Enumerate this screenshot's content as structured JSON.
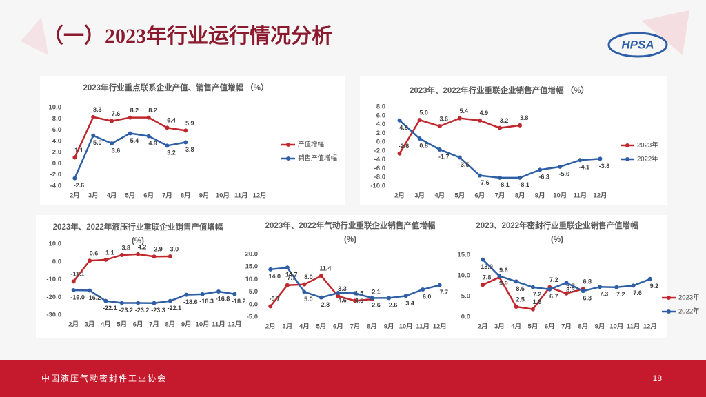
{
  "header": {
    "title": "（一）2023年行业运行情况分析",
    "logo": "HPSA"
  },
  "footer": {
    "organization": "中国液压气动密封件工业协会",
    "page_number": "18"
  },
  "chart_data": [
    {
      "type": "line",
      "title": "2023年行业重点联系企业产值、销售产值增幅 （%）",
      "categories": [
        "2月",
        "3月",
        "4月",
        "5月",
        "6月",
        "7月",
        "8月",
        "9月",
        "10月",
        "11月",
        "12月"
      ],
      "series": [
        {
          "name": "产值增幅",
          "color": "#c0282d",
          "values": [
            1.1,
            8.3,
            7.6,
            8.2,
            8.2,
            6.4,
            5.9,
            null,
            null,
            null,
            null
          ],
          "value_labels": [
            "1.1",
            "8.3",
            "7.6",
            "8.2",
            "8.2",
            "6.4",
            "5.9",
            null,
            null,
            null,
            null
          ]
        },
        {
          "name": "销售产值增幅",
          "color": "#2e5fa6",
          "values": [
            -2.6,
            5.0,
            3.6,
            5.4,
            4.9,
            3.2,
            3.8,
            null,
            null,
            null,
            null
          ],
          "value_labels": [
            "-2.6",
            "5.0",
            "3.6",
            "5.4",
            "4.9",
            "3.2",
            "3.8",
            null,
            null,
            null,
            null
          ]
        }
      ],
      "ylim": [
        -4,
        10
      ],
      "yticks": [
        {
          "value": -4,
          "label": "-4.0"
        },
        {
          "value": -2,
          "label": "-2.0"
        },
        {
          "value": 0,
          "label": "0.0"
        },
        {
          "value": 2,
          "label": "2.0"
        },
        {
          "value": 4,
          "label": "4.0"
        },
        {
          "value": 6,
          "label": "6.0"
        },
        {
          "value": 8,
          "label": "8.0"
        },
        {
          "value": 10,
          "label": "10.0"
        }
      ],
      "legend": "right"
    },
    {
      "type": "line",
      "title": "2023年、2022年行业重联企业销售产值增幅 （%）",
      "categories": [
        "2月",
        "3月",
        "4月",
        "5月",
        "6月",
        "7月",
        "8月",
        "9月",
        "10月",
        "11月",
        "12月"
      ],
      "series": [
        {
          "name": "2023年",
          "color": "#c0282d",
          "values": [
            -2.6,
            5.0,
            3.6,
            5.4,
            4.9,
            3.2,
            3.8,
            null,
            null,
            null,
            null
          ],
          "value_labels": [
            "-2.6",
            "5.0",
            "3.6",
            "5.4",
            "4.9",
            "3.2",
            "3.8",
            null,
            null,
            null,
            null
          ]
        },
        {
          "name": "2022年",
          "color": "#2e5fa6",
          "values": [
            4.9,
            0.8,
            -1.7,
            -3.5,
            -7.6,
            -8.1,
            -8.1,
            -6.3,
            -5.6,
            -4.1,
            -3.8
          ],
          "value_labels": [
            "4.9",
            "0.8",
            "-1.7",
            "-3.5",
            "-7.6",
            "-8.1",
            "-8.1",
            "-6.3",
            "-5.6",
            "-4.1",
            "-3.8"
          ]
        }
      ],
      "ylim": [
        -10,
        8
      ],
      "yticks": [
        {
          "value": -10,
          "label": "-10.0"
        },
        {
          "value": -8,
          "label": "-8.0"
        },
        {
          "value": -6,
          "label": "-6.0"
        },
        {
          "value": -4,
          "label": "-4.0"
        },
        {
          "value": -2,
          "label": "-2.0"
        },
        {
          "value": 0,
          "label": "0.0"
        },
        {
          "value": 2,
          "label": "2.0"
        },
        {
          "value": 4,
          "label": "4.0"
        },
        {
          "value": 6,
          "label": "6.0"
        },
        {
          "value": 8,
          "label": "8.0"
        }
      ],
      "legend": "right"
    },
    {
      "type": "line",
      "title": "2023年、2022年液压行业重联企业销售产值增幅",
      "subtitle": "(%)",
      "categories": [
        "2月",
        "3月",
        "4月",
        "5月",
        "6月",
        "7月",
        "8月",
        "9月",
        "10月",
        "11月",
        "12月"
      ],
      "series": [
        {
          "name": "2023年",
          "color": "#c0282d",
          "values": [
            -11.1,
            0.6,
            1.1,
            3.8,
            4.2,
            2.9,
            3.0,
            null,
            null,
            null,
            null
          ],
          "value_labels": [
            "-11.1",
            "0.6",
            "1.1",
            "3.8",
            "4.2",
            "2.9",
            "3.0",
            null,
            null,
            null,
            null
          ]
        },
        {
          "name": "2022年",
          "color": "#2e5fa6",
          "values": [
            -16.0,
            -16.2,
            -22.1,
            -23.2,
            -23.2,
            -23.3,
            -22.1,
            -18.6,
            -18.3,
            -16.8,
            -18.2
          ],
          "value_labels": [
            "-16.0",
            "-16.2",
            "-22.1",
            "-23.2",
            "-23.2",
            "-23.3",
            "-22.1",
            "-18.6",
            "-18.3",
            "-16.8",
            "-18.2"
          ]
        }
      ],
      "ylim": [
        -30,
        10
      ],
      "yticks": [
        {
          "value": -30,
          "label": "-30.0"
        },
        {
          "value": -20,
          "label": "-20.0"
        },
        {
          "value": -10,
          "label": "-10.0"
        },
        {
          "value": 0,
          "label": "0.0"
        },
        {
          "value": 10,
          "label": "10.0"
        }
      ]
    },
    {
      "type": "line",
      "title": "2023年、2022年气动行业重联企业销售产值增幅",
      "subtitle": "(%)",
      "categories": [
        "2月",
        "3月",
        "4月",
        "5月",
        "6月",
        "7月",
        "8月",
        "9月",
        "10月",
        "11月",
        "12月"
      ],
      "series": [
        {
          "name": "2023年",
          "color": "#c0282d",
          "values": [
            -0.7,
            7.7,
            8.0,
            11.4,
            3.3,
            1.5,
            2.1,
            null,
            null,
            null,
            null
          ],
          "value_labels": [
            "-0.7",
            "7.7",
            "8.0",
            "11.4",
            "3.3",
            "1.5",
            "2.1",
            null,
            null,
            null,
            null
          ]
        },
        {
          "name": "2022年",
          "color": "#2e5fa6",
          "values": [
            14.0,
            14.7,
            5.0,
            2.8,
            4.6,
            4.5,
            2.6,
            2.6,
            3.4,
            6.0,
            7.7
          ],
          "value_labels": [
            "14.0",
            "14.7",
            "5.0",
            "2.8",
            "4.6",
            "4.5",
            "2.6",
            "2.6",
            "3.4",
            "6.0",
            "7.7"
          ]
        }
      ],
      "ylim": [
        -5,
        20
      ],
      "yticks": [
        {
          "value": -5,
          "label": "-5.0"
        },
        {
          "value": 0,
          "label": "0.0"
        },
        {
          "value": 5,
          "label": "5.0"
        },
        {
          "value": 10,
          "label": "10.0"
        },
        {
          "value": 15,
          "label": "15.0"
        },
        {
          "value": 20,
          "label": "20.0"
        }
      ]
    },
    {
      "type": "line",
      "title": "2023、2022年密封行业重联企业销售产值增幅",
      "subtitle": "(%)",
      "categories": [
        "2月",
        "3月",
        "4月",
        "5月",
        "6月",
        "7月",
        "8月",
        "9月",
        "10月",
        "11月",
        "12月"
      ],
      "series": [
        {
          "name": "2023年",
          "color": "#c0282d",
          "values": [
            7.8,
            9.6,
            2.5,
            1.9,
            7.2,
            5.7,
            6.8,
            null,
            null,
            null,
            null
          ],
          "value_labels": [
            "7.8",
            "9.6",
            "2.5",
            "1.9",
            "7.2",
            "5.7",
            "6.8",
            null,
            null,
            null,
            null
          ]
        },
        {
          "name": "2022年",
          "color": "#2e5fa6",
          "values": [
            13.9,
            9.9,
            8.6,
            7.2,
            6.7,
            8.3,
            6.3,
            7.3,
            7.2,
            7.6,
            9.2
          ],
          "value_labels": [
            "13.9",
            "9.9",
            "8.6",
            "7.2",
            "6.7",
            "8.3",
            "6.3",
            "7.3",
            "7.2",
            "7.6",
            "9.2"
          ]
        }
      ],
      "ylim": [
        0,
        15
      ],
      "yticks": [
        {
          "value": 0,
          "label": "0.0"
        },
        {
          "value": 5,
          "label": "5.0"
        },
        {
          "value": 10,
          "label": "10.0"
        },
        {
          "value": 15,
          "label": "15.0"
        }
      ],
      "legend": "right"
    }
  ]
}
